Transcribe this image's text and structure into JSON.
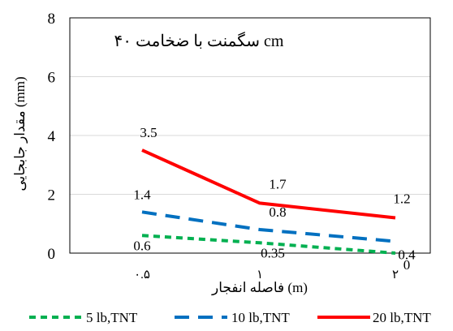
{
  "chart_data": {
    "type": "line",
    "title": "سگمنت با ضخامت ۴۰ cm",
    "xlabel": "فاصله انفجار (m)",
    "ylabel": "مقدار جابجایی (mm)",
    "categories": [
      "۰.۵",
      "۱",
      "۲"
    ],
    "ylim": [
      0,
      8
    ],
    "yticks": [
      0,
      2,
      4,
      6,
      8
    ],
    "grid": true,
    "legend_position": "bottom",
    "series": [
      {
        "name": "5 lb,TNT",
        "values": [
          0.6,
          0.35,
          0
        ],
        "labels": [
          "0.6",
          "0.35",
          "0"
        ],
        "color": "#00b050",
        "style": "dotted"
      },
      {
        "name": "10 lb,TNT",
        "values": [
          1.4,
          0.8,
          0.4
        ],
        "labels": [
          "1.4",
          "0.8",
          "0.4"
        ],
        "color": "#0070c0",
        "style": "dashed"
      },
      {
        "name": "20 lb,TNT",
        "values": [
          3.5,
          1.7,
          1.2
        ],
        "labels": [
          "3.5",
          "1.7",
          "1.2"
        ],
        "color": "#ff0000",
        "style": "solid"
      }
    ]
  }
}
